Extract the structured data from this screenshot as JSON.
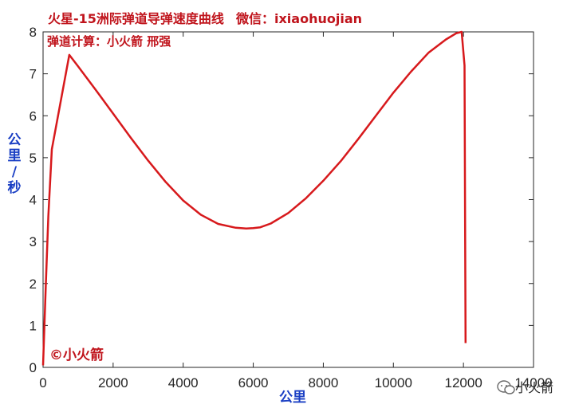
{
  "chart_data": {
    "type": "line",
    "title": "火星-15洲际弹道导弹速度曲线",
    "wechat": "微信：ixiaohuojian",
    "credit": "弹道计算：小火箭 邢强",
    "copyright": "©小火箭",
    "xlabel": "公里",
    "ylabel": "公里/秒",
    "xlim": [
      0,
      14000
    ],
    "ylim": [
      0,
      8
    ],
    "xticks": [
      "0",
      "2000",
      "4000",
      "6000",
      "8000",
      "10000",
      "12000",
      "14000"
    ],
    "yticks": [
      "0",
      "1",
      "2",
      "3",
      "4",
      "5",
      "6",
      "7",
      "8"
    ],
    "grid": false,
    "line_color": "#d7191c",
    "series": [
      {
        "x": [
          0,
          80,
          150,
          250,
          750,
          1000,
          1500,
          2000,
          2500,
          3000,
          3500,
          4000,
          4500,
          5000,
          5500,
          5800,
          6000,
          6200,
          6500,
          7000,
          7500,
          8000,
          8500,
          9000,
          9500,
          10000,
          10500,
          11000,
          11500,
          11800,
          11950,
          12030,
          12050,
          12060
        ],
        "y": [
          0.05,
          2.0,
          3.6,
          5.2,
          7.45,
          7.18,
          6.62,
          6.05,
          5.48,
          4.93,
          4.42,
          3.98,
          3.64,
          3.42,
          3.33,
          3.31,
          3.32,
          3.34,
          3.43,
          3.68,
          4.03,
          4.45,
          4.92,
          5.45,
          6.0,
          6.55,
          7.05,
          7.5,
          7.82,
          7.97,
          8.0,
          7.2,
          3.0,
          0.58
        ]
      }
    ]
  },
  "watermark": {
    "icon": "wechat-icon",
    "text": "小火箭"
  }
}
